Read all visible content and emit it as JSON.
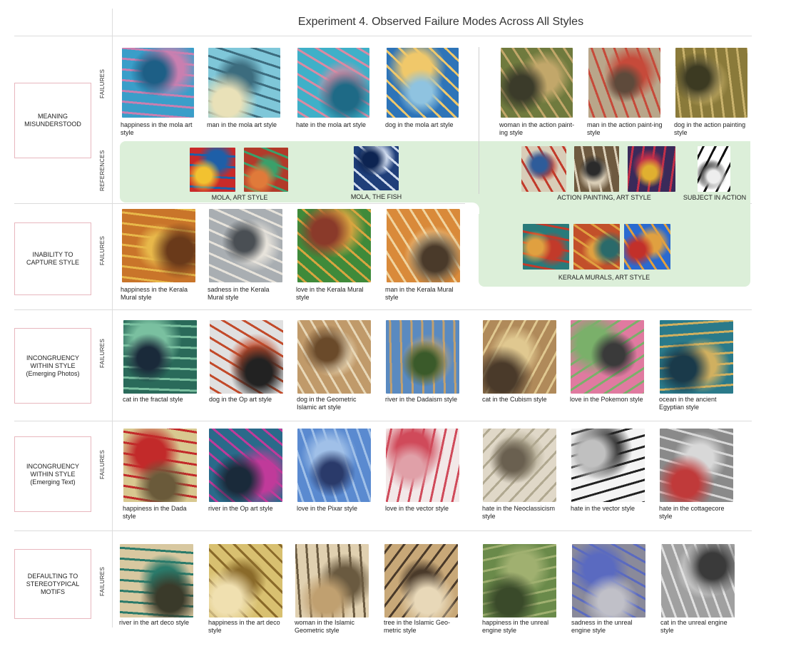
{
  "title": "Experiment 4. Observed Failure Modes Across All Styles",
  "row_labels": {
    "failures": "FAILURES",
    "references": "REFERENCES"
  },
  "categories": [
    {
      "label": "MEANING\nMISUNDERSTOOD"
    },
    {
      "label": "INABILITY TO\nCAPTURE STYLE"
    },
    {
      "label": "INCONGRUENCY\nWITHIN STYLE\n(Emerging Photos)"
    },
    {
      "label": "INCONGRUENCY\nWITHIN STYLE\n(Emerging Text)"
    },
    {
      "label": "DEFAULTING TO\nSTEREOTYPICAL\nMOTIFS"
    }
  ],
  "row1": [
    {
      "caption": "happiness in the mola art style",
      "colors": [
        "#3a9ec9",
        "#c97fb0",
        "#1d5f86"
      ]
    },
    {
      "caption": "man in the mola art style",
      "colors": [
        "#7fc7d9",
        "#3c6c7e",
        "#e9e1b8"
      ]
    },
    {
      "caption": "hate in the mola art style",
      "colors": [
        "#3fb0c8",
        "#d98aa3",
        "#1e6a86"
      ]
    },
    {
      "caption": "dog in the mola art style",
      "colors": [
        "#2e74b8",
        "#f0c86a",
        "#8fc3e0"
      ]
    },
    {
      "caption": "woman in the action paint-ing style",
      "colors": [
        "#6f7a3e",
        "#c2a76a",
        "#3b3b2a"
      ]
    },
    {
      "caption": "man in the action paint-ing style",
      "colors": [
        "#b9a68a",
        "#c64a3a",
        "#5e4a3b"
      ]
    },
    {
      "caption": "dog in the action painting style",
      "colors": [
        "#8a7a3a",
        "#c9b26c",
        "#3c3a22"
      ]
    }
  ],
  "references_row1": [
    {
      "group": "MOLA, ART STYLE",
      "colors": [
        [
          "#c92a2a",
          "#1e5fa8",
          "#f2c230"
        ],
        [
          "#b23a2a",
          "#3aa06a",
          "#e07a3a"
        ]
      ]
    },
    {
      "group": "MOLA, THE FISH",
      "colors": [
        [
          "#1f3f7a",
          "#d0dcef",
          "#0d2452"
        ]
      ]
    },
    {
      "group": "ACTION PAINTING, ART STYLE",
      "colors": [
        [
          "#d8cdb8",
          "#c23a2a",
          "#2e5c9a"
        ],
        [
          "#6e5a40",
          "#d9cdb6",
          "#2b2b2b"
        ],
        [
          "#3a2a5a",
          "#c2304a",
          "#e0b030"
        ]
      ]
    },
    {
      "group": "SUBJECT IN ACTION",
      "colors": [
        [
          "#ffffff",
          "#111111",
          "#eeeeee"
        ]
      ]
    }
  ],
  "row2": [
    {
      "caption": "happiness in the Kerala Mural style",
      "colors": [
        "#c9752a",
        "#e8b84a",
        "#6a3a1a"
      ]
    },
    {
      "caption": "sadness in the Kerala Mural style",
      "colors": [
        "#a9aeb2",
        "#e7e3db",
        "#4a4f54"
      ]
    },
    {
      "caption": "love in the Kerala Mural style",
      "colors": [
        "#3f8a3a",
        "#d8a540",
        "#8a3a2a"
      ]
    },
    {
      "caption": "man in the Kerala Mural style",
      "colors": [
        "#d98a3a",
        "#f0d4a0",
        "#4a3a2a"
      ]
    }
  ],
  "references_row2": {
    "group": "KERALA MURALS, ART STYLE",
    "colors": [
      [
        "#2a7a7a",
        "#c23a2a",
        "#e0a040"
      ],
      [
        "#c2502a",
        "#e0a040",
        "#2a6a6a"
      ],
      [
        "#2a6ad0",
        "#e0a040",
        "#c2302a"
      ]
    ]
  },
  "row3": [
    {
      "caption": "cat in the fractal style",
      "colors": [
        "#2a6a5a",
        "#7ac0a0",
        "#1a2a3a"
      ]
    },
    {
      "caption": "dog in the Op art style",
      "colors": [
        "#e0e0e0",
        "#c24a2a",
        "#222222"
      ]
    },
    {
      "caption": "dog in the Geometric Islamic art style",
      "colors": [
        "#c09a6a",
        "#e8d8b8",
        "#6a4a2a"
      ]
    },
    {
      "caption": "river in the Dadaism style",
      "colors": [
        "#5a8ac0",
        "#c0a070",
        "#3a5a2a"
      ]
    },
    {
      "caption": "cat in the Cubism style",
      "colors": [
        "#b08a5a",
        "#e0c890",
        "#4a3a2a"
      ]
    },
    {
      "caption": "love in the Pokemon style",
      "colors": [
        "#e07aa0",
        "#7ab06a",
        "#3a3a3a"
      ]
    },
    {
      "caption": "ocean in the ancient Egyptian style",
      "colors": [
        "#2a7a8a",
        "#d0b060",
        "#1a3a4a"
      ]
    }
  ],
  "row4": [
    {
      "caption": "happiness in the Dada style",
      "colors": [
        "#d8c890",
        "#c22a2a",
        "#6a5a3a"
      ]
    },
    {
      "caption": "river in the Op art style",
      "colors": [
        "#2a6a8a",
        "#c03a9a",
        "#1a2a3a"
      ]
    },
    {
      "caption": "love in the Pixar style",
      "colors": [
        "#5a8ad0",
        "#a0c0e8",
        "#2a3a6a"
      ]
    },
    {
      "caption": "love in the vector style",
      "colors": [
        "#f2e8e8",
        "#d04a5a",
        "#e0a0a8"
      ]
    },
    {
      "caption": "hate in the Neoclassicism style",
      "colors": [
        "#e0d8c8",
        "#b0a890",
        "#6a6050"
      ]
    },
    {
      "caption": "hate in the vector style",
      "colors": [
        "#f4f4f4",
        "#222222",
        "#c0c0c0"
      ]
    },
    {
      "caption": "hate in the cottagecore style",
      "colors": [
        "#8a8a8a",
        "#d8d8d8",
        "#c03a3a"
      ]
    }
  ],
  "row5": [
    {
      "caption": "river in the art deco style",
      "colors": [
        "#d8c8a0",
        "#2a7a6a",
        "#3a3a2a"
      ]
    },
    {
      "caption": "happiness in the art deco style",
      "colors": [
        "#d8c070",
        "#8a6a2a",
        "#f0e0b0"
      ]
    },
    {
      "caption": "woman in the Islamic Geometric style",
      "colors": [
        "#e0d0b0",
        "#6a5a40",
        "#c0a070"
      ]
    },
    {
      "caption": "tree in the Islamic Geo-metric style",
      "colors": [
        "#c8a878",
        "#4a3a2a",
        "#e8d8b8"
      ]
    },
    {
      "caption": "happiness in the unreal engine style",
      "colors": [
        "#6a8a4a",
        "#a0b070",
        "#3a4a2a"
      ]
    },
    {
      "caption": "sadness in the unreal engine style",
      "colors": [
        "#8a8a9a",
        "#5a6ac0",
        "#c0c0c8"
      ]
    },
    {
      "caption": "cat in the unreal engine style",
      "colors": [
        "#a0a0a0",
        "#e0e0e0",
        "#3a3a3a"
      ]
    }
  ]
}
